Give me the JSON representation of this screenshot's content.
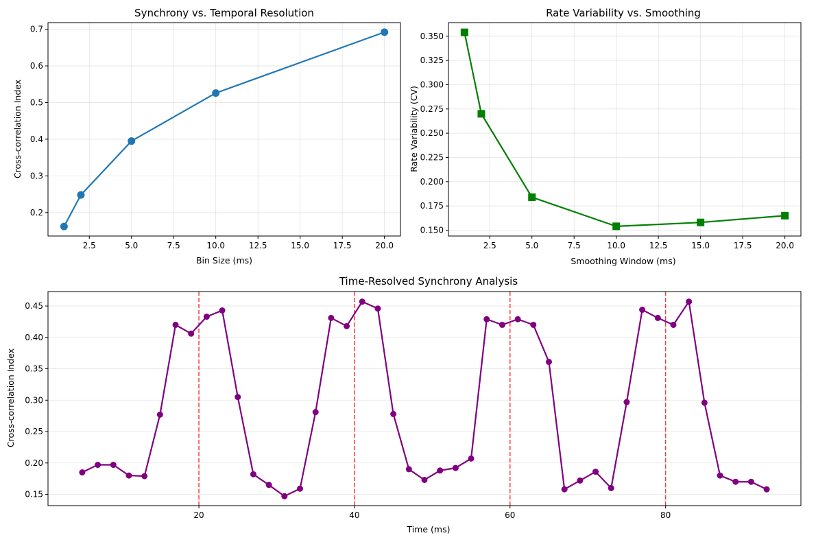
{
  "chart_data": [
    {
      "type": "line",
      "title": "Synchrony vs. Temporal Resolution",
      "xlabel": "Bin Size (ms)",
      "ylabel": "Cross-correlation Index",
      "x": [
        1,
        2,
        5,
        10,
        20
      ],
      "series": [
        {
          "values": [
            0.162,
            0.248,
            0.395,
            0.526,
            0.692
          ],
          "color": "#1f77b4",
          "marker": "circle"
        }
      ],
      "xlim": [
        0.05,
        20.95
      ],
      "ylim": [
        0.136,
        0.718
      ],
      "xticks": [
        2.5,
        5.0,
        7.5,
        10.0,
        12.5,
        15.0,
        17.5,
        20.0
      ],
      "xtick_labels": [
        "2.5",
        "5.0",
        "7.5",
        "10.0",
        "12.5",
        "15.0",
        "17.5",
        "20.0"
      ],
      "yticks": [
        0.2,
        0.3,
        0.4,
        0.5,
        0.6,
        0.7
      ],
      "ytick_labels": [
        "0.2",
        "0.3",
        "0.4",
        "0.5",
        "0.6",
        "0.7"
      ],
      "grid": true
    },
    {
      "type": "line",
      "title": "Rate Variability vs. Smoothing",
      "xlabel": "Smoothing Window (ms)",
      "ylabel": "Rate Variability (CV)",
      "x": [
        1,
        2,
        5,
        10,
        15,
        20
      ],
      "series": [
        {
          "values": [
            0.354,
            0.27,
            0.184,
            0.154,
            0.158,
            0.165
          ],
          "color": "#008000",
          "marker": "square"
        }
      ],
      "xlim": [
        0.05,
        20.95
      ],
      "ylim": [
        0.144,
        0.364
      ],
      "xticks": [
        2.5,
        5.0,
        7.5,
        10.0,
        12.5,
        15.0,
        17.5,
        20.0
      ],
      "xtick_labels": [
        "2.5",
        "5.0",
        "7.5",
        "10.0",
        "12.5",
        "15.0",
        "17.5",
        "20.0"
      ],
      "yticks": [
        0.15,
        0.175,
        0.2,
        0.225,
        0.25,
        0.275,
        0.3,
        0.325,
        0.35
      ],
      "ytick_labels": [
        "0.150",
        "0.175",
        "0.200",
        "0.225",
        "0.250",
        "0.275",
        "0.300",
        "0.325",
        "0.350"
      ],
      "grid": true
    },
    {
      "type": "line",
      "title": "Time-Resolved Synchrony Analysis",
      "xlabel": "Time (ms)",
      "ylabel": "Cross-correlation Index",
      "x": [
        5,
        7,
        9,
        11,
        13,
        15,
        17,
        19,
        21,
        23,
        25,
        27,
        29,
        31,
        33,
        35,
        37,
        39,
        41,
        43,
        45,
        47,
        49,
        51,
        53,
        55,
        57,
        59,
        61,
        63,
        65,
        67,
        69,
        71,
        73,
        75,
        77,
        79,
        81,
        83,
        85,
        87,
        89,
        91,
        93
      ],
      "series": [
        {
          "values": [
            0.185,
            0.197,
            0.197,
            0.18,
            0.179,
            0.277,
            0.42,
            0.406,
            0.433,
            0.443,
            0.305,
            0.182,
            0.165,
            0.147,
            0.159,
            0.281,
            0.431,
            0.418,
            0.457,
            0.446,
            0.278,
            0.19,
            0.173,
            0.188,
            0.192,
            0.207,
            0.429,
            0.42,
            0.429,
            0.42,
            0.361,
            0.158,
            0.172,
            0.186,
            0.16,
            0.297,
            0.444,
            0.431,
            0.42,
            0.457,
            0.296,
            0.18,
            0.17,
            0.17,
            0.158
          ],
          "color": "#800080",
          "marker": "circle"
        }
      ],
      "vlines": [
        20,
        40,
        60,
        80
      ],
      "vline_color": "#ff0000",
      "xlim": [
        0.6,
        97.4
      ],
      "ylim": [
        0.132,
        0.473
      ],
      "xticks": [
        20,
        40,
        60,
        80
      ],
      "xtick_labels": [
        "20",
        "40",
        "60",
        "80"
      ],
      "yticks": [
        0.15,
        0.2,
        0.25,
        0.3,
        0.35,
        0.4,
        0.45
      ],
      "ytick_labels": [
        "0.15",
        "0.20",
        "0.25",
        "0.30",
        "0.35",
        "0.40",
        "0.45"
      ],
      "grid": true
    }
  ]
}
